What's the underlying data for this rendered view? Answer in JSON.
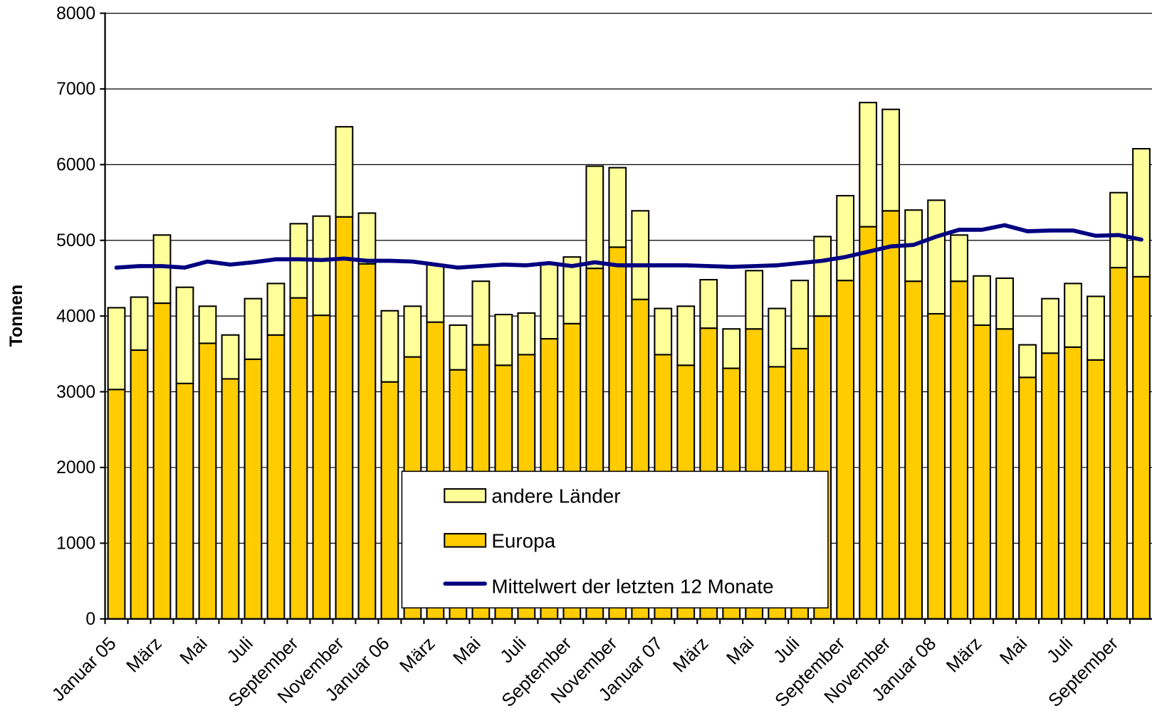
{
  "chart_data": {
    "type": "bar",
    "stacked": true,
    "title": "",
    "xlabel": "",
    "ylabel": "Tonnen",
    "ylim": [
      0,
      8000
    ],
    "y_ticks": [
      0,
      1000,
      2000,
      3000,
      4000,
      5000,
      6000,
      7000,
      8000
    ],
    "grid": "horizontal",
    "legend_position": "bottom-center",
    "categories": [
      "Januar 05",
      "",
      "März",
      "",
      "Mai",
      "",
      "Juli",
      "",
      "September",
      "",
      "November",
      "",
      "Januar 06",
      "",
      "März",
      "",
      "Mai",
      "",
      "Juli",
      "",
      "September",
      "",
      "November",
      "",
      "Januar 07",
      "",
      "März",
      "",
      "Mai",
      "",
      "Juli",
      "",
      "September",
      "",
      "November",
      "",
      "Januar 08",
      "",
      "März",
      "",
      "Mai",
      "",
      "Juli",
      "",
      "September",
      ""
    ],
    "series": [
      {
        "name": "Europa",
        "kind": "bar",
        "color": "#FFCC00",
        "values": [
          3030,
          3550,
          4170,
          3110,
          3640,
          3170,
          3430,
          3750,
          4240,
          4010,
          5310,
          4690,
          3130,
          3460,
          3920,
          3290,
          3620,
          3350,
          3490,
          3700,
          3900,
          4630,
          4910,
          4220,
          3490,
          3350,
          3840,
          3310,
          3830,
          3330,
          3570,
          4000,
          4470,
          5180,
          5390,
          4460,
          4030,
          4460,
          3880,
          3830,
          3190,
          3510,
          3590,
          3420,
          4640,
          4520
        ]
      },
      {
        "name": "andere Länder",
        "kind": "bar",
        "color": "#FFFF99",
        "values": [
          1080,
          700,
          900,
          1270,
          490,
          580,
          800,
          680,
          980,
          1310,
          1190,
          670,
          940,
          670,
          760,
          590,
          840,
          670,
          550,
          990,
          880,
          1350,
          1050,
          1170,
          610,
          780,
          640,
          520,
          770,
          770,
          900,
          1050,
          1120,
          1640,
          1340,
          940,
          1500,
          610,
          650,
          670,
          430,
          720,
          840,
          840,
          990,
          1690
        ]
      },
      {
        "name": "Mittelwert der letzten 12 Monate",
        "kind": "line",
        "color": "#000080",
        "values": [
          4640,
          4660,
          4660,
          4640,
          4720,
          4680,
          4710,
          4750,
          4750,
          4740,
          4760,
          4730,
          4730,
          4720,
          4680,
          4640,
          4660,
          4680,
          4670,
          4700,
          4660,
          4710,
          4670,
          4670,
          4670,
          4670,
          4660,
          4650,
          4660,
          4670,
          4700,
          4730,
          4780,
          4850,
          4920,
          4940,
          5050,
          5140,
          5140,
          5200,
          5120,
          5130,
          5130,
          5060,
          5070,
          5010
        ]
      }
    ]
  }
}
